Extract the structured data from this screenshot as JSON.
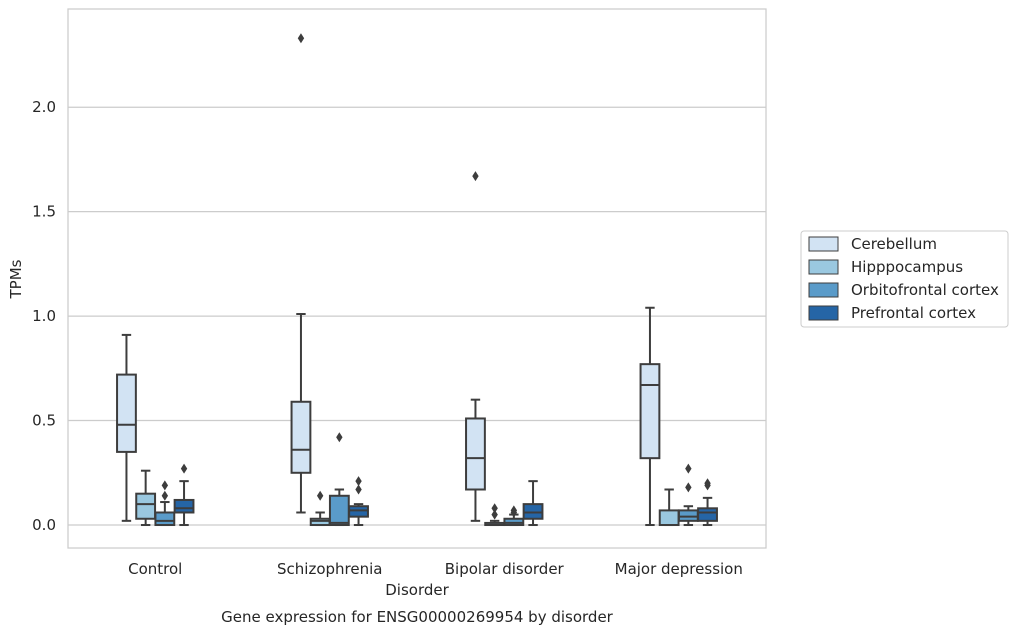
{
  "chart_data": {
    "type": "box",
    "title": "",
    "caption": "Gene expression for ENSG00000269954 by disorder",
    "xlabel": "Disorder",
    "ylabel": "TPMs",
    "ylim": [
      -0.11,
      2.47
    ],
    "yticks": [
      0.0,
      0.5,
      1.0,
      1.5,
      2.0
    ],
    "ytick_labels": [
      "0.0",
      "0.5",
      "1.0",
      "1.5",
      "2.0"
    ],
    "grid": "horizontal",
    "legend_position": "right",
    "categories": [
      "Control",
      "Schizophrenia",
      "Bipolar disorder",
      "Major depression"
    ],
    "series": [
      {
        "name": "Cerebellum",
        "color": "#d2e3f3",
        "boxes": [
          {
            "whislo": 0.02,
            "q1": 0.35,
            "med": 0.48,
            "q3": 0.72,
            "whishi": 0.91,
            "fliers": []
          },
          {
            "whislo": 0.06,
            "q1": 0.25,
            "med": 0.36,
            "q3": 0.59,
            "whishi": 1.01,
            "fliers": [
              2.33
            ]
          },
          {
            "whislo": 0.02,
            "q1": 0.17,
            "med": 0.32,
            "q3": 0.51,
            "whishi": 0.6,
            "fliers": [
              1.67
            ]
          },
          {
            "whislo": 0.0,
            "q1": 0.32,
            "med": 0.67,
            "q3": 0.77,
            "whishi": 1.04,
            "fliers": []
          }
        ]
      },
      {
        "name": "Hipppocampus",
        "color": "#9ac8e0",
        "boxes": [
          {
            "whislo": 0.0,
            "q1": 0.03,
            "med": 0.1,
            "q3": 0.15,
            "whishi": 0.26,
            "fliers": []
          },
          {
            "whislo": 0.0,
            "q1": 0.0,
            "med": 0.02,
            "q3": 0.03,
            "whishi": 0.06,
            "fliers": [
              0.14
            ]
          },
          {
            "whislo": 0.0,
            "q1": 0.0,
            "med": 0.0,
            "q3": 0.01,
            "whishi": 0.02,
            "fliers": [
              0.08,
              0.05
            ]
          },
          {
            "whislo": 0.0,
            "q1": 0.0,
            "med": 0.0,
            "q3": 0.07,
            "whishi": 0.17,
            "fliers": []
          }
        ]
      },
      {
        "name": "Orbitofrontal cortex",
        "color": "#5a9bc9",
        "boxes": [
          {
            "whislo": 0.0,
            "q1": 0.0,
            "med": 0.02,
            "q3": 0.06,
            "whishi": 0.11,
            "fliers": [
              0.19,
              0.14
            ]
          },
          {
            "whislo": 0.0,
            "q1": 0.0,
            "med": 0.01,
            "q3": 0.14,
            "whishi": 0.17,
            "fliers": [
              0.42
            ]
          },
          {
            "whislo": 0.0,
            "q1": 0.0,
            "med": 0.01,
            "q3": 0.03,
            "whishi": 0.05,
            "fliers": [
              0.07,
              0.06
            ]
          },
          {
            "whislo": 0.0,
            "q1": 0.02,
            "med": 0.04,
            "q3": 0.07,
            "whishi": 0.09,
            "fliers": [
              0.27,
              0.18
            ]
          }
        ]
      },
      {
        "name": "Prefrontal cortex",
        "color": "#2565a6",
        "boxes": [
          {
            "whislo": 0.0,
            "q1": 0.06,
            "med": 0.08,
            "q3": 0.12,
            "whishi": 0.21,
            "fliers": [
              0.27
            ]
          },
          {
            "whislo": 0.0,
            "q1": 0.04,
            "med": 0.07,
            "q3": 0.09,
            "whishi": 0.1,
            "fliers": [
              0.21,
              0.17
            ]
          },
          {
            "whislo": 0.0,
            "q1": 0.03,
            "med": 0.06,
            "q3": 0.1,
            "whishi": 0.21,
            "fliers": []
          },
          {
            "whislo": 0.0,
            "q1": 0.02,
            "med": 0.06,
            "q3": 0.08,
            "whishi": 0.13,
            "fliers": [
              0.2,
              0.19
            ]
          }
        ]
      }
    ]
  }
}
